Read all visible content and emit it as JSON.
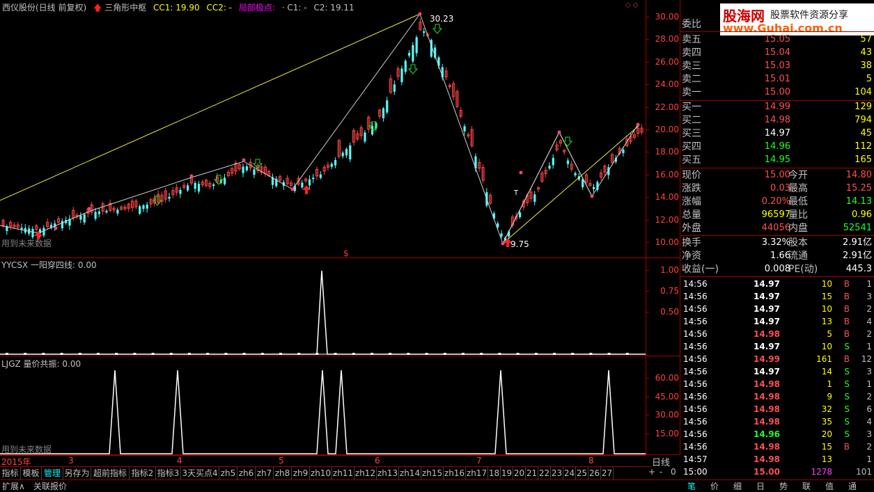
{
  "header": {
    "stock": "西仪股份(日线 前复权)",
    "indicator": "三角形中枢",
    "cc1": "CC1: 19.90",
    "cc2": "CC2: -",
    "local": "局部极点:",
    "c1": "· C1: -",
    "c2": "C2: 19.11"
  },
  "main_chart": {
    "watermark": "用到未来数据",
    "high_label": "30.23",
    "low_label": "9.75",
    "y_ticks": [
      "30.00",
      "28.00",
      "26.00",
      "24.00",
      "22.00",
      "20.00",
      "18.00",
      "16.00",
      "14.00",
      "12.00",
      "10.00"
    ],
    "dollar": "$",
    "t_marker": "T"
  },
  "sub1": {
    "title": "YYCSX 一阳穿四线: 0.00",
    "y_ticks": [
      "1.00",
      "0.75",
      "0.50"
    ]
  },
  "sub2": {
    "title": "LJGZ 量价共振: 0.00",
    "watermark": "用到未来数据",
    "y_ticks": [
      "60.00",
      "45.00",
      "30.00",
      "15.00"
    ]
  },
  "x_axis": {
    "labels": [
      "2015年",
      "3",
      "4",
      "5",
      "6",
      "7",
      "8"
    ],
    "period": "日线"
  },
  "tabs": [
    "指标",
    "模板",
    "管理",
    "另存为",
    "超前指标",
    "指标2",
    "指标3",
    "3天买点4",
    "zh5",
    "zh6",
    "zh7",
    "zh8",
    "zh9",
    "zh10",
    "zh11",
    "zh12",
    "zh13",
    "zh14",
    "zh15",
    "zh16",
    "zh17",
    "18",
    "19",
    "20",
    "21",
    "22",
    "23",
    "24",
    "25",
    "26",
    "27"
  ],
  "tab_controls": [
    "+",
    "-",
    "0"
  ],
  "bottom_left": [
    "扩展∧",
    "关联报价"
  ],
  "bottom_right": [
    "笔",
    "价",
    "细",
    "日",
    "势",
    "联",
    "值",
    "通"
  ],
  "watermark_logo": {
    "name": "股海网",
    "sub": "股票软件资源分享",
    "url": "www.Guhai.com.cn"
  },
  "order_book": {
    "ratio_label": "委比",
    "asks": [
      {
        "label": "卖五",
        "price": "15.05",
        "vol": "57"
      },
      {
        "label": "卖四",
        "price": "15.04",
        "vol": "43"
      },
      {
        "label": "卖三",
        "price": "15.03",
        "vol": "38"
      },
      {
        "label": "卖二",
        "price": "15.01",
        "vol": "5"
      },
      {
        "label": "卖一",
        "price": "15.00",
        "vol": "104"
      }
    ],
    "bids": [
      {
        "label": "买一",
        "price": "14.99",
        "vol": "129"
      },
      {
        "label": "买二",
        "price": "14.98",
        "vol": "794"
      },
      {
        "label": "买三",
        "price": "14.97",
        "vol": "45"
      },
      {
        "label": "买四",
        "price": "14.96",
        "vol": "112"
      },
      {
        "label": "买五",
        "price": "14.95",
        "vol": "165"
      }
    ]
  },
  "quote": [
    {
      "l1": "现价",
      "v1": "15.00",
      "l2": "今开",
      "v2": "14.80"
    },
    {
      "l1": "涨跌",
      "v1": "0.03",
      "l2": "最高",
      "v2": "15.25"
    },
    {
      "l1": "涨幅",
      "v1": "0.20%",
      "l2": "最低",
      "v2": "14.13"
    },
    {
      "l1": "总量",
      "v1": "96597",
      "l2": "量比",
      "v2": "0.96"
    },
    {
      "l1": "外盘",
      "v1": "44056",
      "l2": "内盘",
      "v2": "52541"
    }
  ],
  "stats": [
    {
      "l1": "换手",
      "v1": "3.32%",
      "l2": "股本",
      "v2": "2.91亿"
    },
    {
      "l1": "净资",
      "v1": "1.66",
      "l2": "流通",
      "v2": "2.91亿"
    },
    {
      "l1": "收益(一)",
      "v1": "0.008",
      "l2": "PE(动)",
      "v2": "445.3"
    }
  ],
  "ticks": [
    {
      "t": "14:56",
      "p": "14.97",
      "v": "10",
      "d": "B",
      "n": "1"
    },
    {
      "t": "14:56",
      "p": "14.97",
      "v": "15",
      "d": "B",
      "n": "3"
    },
    {
      "t": "14:56",
      "p": "14.97",
      "v": "10",
      "d": "B",
      "n": "2"
    },
    {
      "t": "14:56",
      "p": "14.97",
      "v": "13",
      "d": "B",
      "n": "4"
    },
    {
      "t": "14:56",
      "p": "14.98",
      "v": "5",
      "d": "B",
      "n": "2"
    },
    {
      "t": "14:56",
      "p": "14.97",
      "v": "10",
      "d": "S",
      "n": "1"
    },
    {
      "t": "14:56",
      "p": "14.99",
      "v": "161",
      "d": "B",
      "n": "12"
    },
    {
      "t": "14:56",
      "p": "14.97",
      "v": "14",
      "d": "S",
      "n": "3"
    },
    {
      "t": "14:56",
      "p": "14.98",
      "v": "1",
      "d": "S",
      "n": "1"
    },
    {
      "t": "14:56",
      "p": "14.98",
      "v": "9",
      "d": "S",
      "n": "2"
    },
    {
      "t": "14:56",
      "p": "14.98",
      "v": "32",
      "d": "S",
      "n": "6"
    },
    {
      "t": "14:56",
      "p": "14.98",
      "v": "35",
      "d": "S",
      "n": "4"
    },
    {
      "t": "14:56",
      "p": "14.96",
      "v": "20",
      "d": "S",
      "n": "3"
    },
    {
      "t": "14:56",
      "p": "14.98",
      "v": "15",
      "d": "B",
      "n": "2"
    },
    {
      "t": "14:57",
      "p": "14.98",
      "v": "13",
      "d": "",
      "n": "1"
    },
    {
      "t": "15:00",
      "p": "15.00",
      "v": "1278",
      "d": "",
      "n": "101"
    }
  ],
  "colors": {
    "up": "#ff4444",
    "down": "#54fcfc",
    "border": "#a00000",
    "yellow": "#ffff00",
    "green": "#00ff00",
    "magenta": "#ff00ff"
  }
}
